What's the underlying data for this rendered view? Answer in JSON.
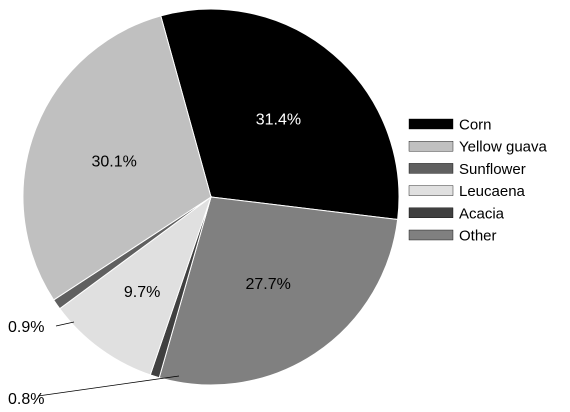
{
  "chart_data": {
    "type": "pie",
    "title": "",
    "legend_position": "right",
    "slices": [
      {
        "name": "Corn",
        "value": 31.4,
        "label": "31.4%",
        "color": "#000000",
        "label_color": "#ffffff",
        "label_outside": false
      },
      {
        "name": "Other",
        "value": 27.7,
        "label": "27.7%",
        "color": "#808080",
        "label_color": "#000000",
        "label_outside": false
      },
      {
        "name": "Acacia",
        "value": 0.8,
        "label": "0.8%",
        "color": "#404040",
        "label_color": "#000000",
        "label_outside": true
      },
      {
        "name": "Leucaena",
        "value": 9.7,
        "label": "9.7%",
        "color": "#e0e0e0",
        "label_color": "#000000",
        "label_outside": false
      },
      {
        "name": "Sunflower",
        "value": 0.9,
        "label": "0.9%",
        "color": "#606060",
        "label_color": "#000000",
        "label_outside": true
      },
      {
        "name": "Yellow guava",
        "value": 30.1,
        "label": "30.1%",
        "color": "#c0c0c0",
        "label_color": "#000000",
        "label_outside": false
      }
    ],
    "legend": [
      {
        "name": "Corn",
        "color": "#000000"
      },
      {
        "name": "Yellow guava",
        "color": "#c0c0c0"
      },
      {
        "name": "Sunflower",
        "color": "#606060"
      },
      {
        "name": "Leucaena",
        "color": "#e0e0e0"
      },
      {
        "name": "Acacia",
        "color": "#404040"
      },
      {
        "name": "Other",
        "color": "#808080"
      }
    ]
  }
}
